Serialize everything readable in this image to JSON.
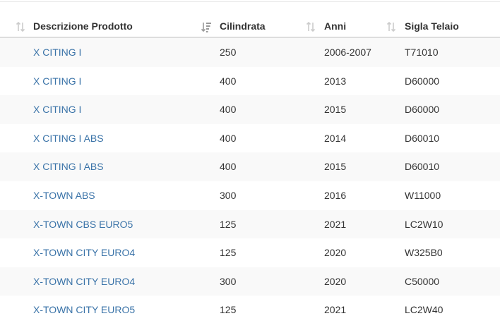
{
  "table": {
    "columns": [
      {
        "key": "product",
        "label": "Descrizione Prodotto",
        "sort_icon": "sort-both-icon"
      },
      {
        "key": "displacement",
        "label": "Cilindrata",
        "sort_icon": "sort-amount-desc-icon"
      },
      {
        "key": "years",
        "label": "Anni",
        "sort_icon": "sort-both-icon"
      },
      {
        "key": "frame",
        "label": "Sigla Telaio",
        "sort_icon": "sort-both-icon"
      }
    ],
    "rows": [
      {
        "product": "X CITING I",
        "displacement": "250",
        "years": "2006-2007",
        "frame": "T71010"
      },
      {
        "product": "X CITING I",
        "displacement": "400",
        "years": "2013",
        "frame": "D60000"
      },
      {
        "product": "X CITING I",
        "displacement": "400",
        "years": "2015",
        "frame": "D60000"
      },
      {
        "product": "X CITING I ABS",
        "displacement": "400",
        "years": "2014",
        "frame": "D60010"
      },
      {
        "product": "X CITING I ABS",
        "displacement": "400",
        "years": "2015",
        "frame": "D60010"
      },
      {
        "product": "X-TOWN ABS",
        "displacement": "300",
        "years": "2016",
        "frame": "W11000"
      },
      {
        "product": "X-TOWN CBS EURO5",
        "displacement": "125",
        "years": "2021",
        "frame": "LC2W10"
      },
      {
        "product": "X-TOWN CITY EURO4",
        "displacement": "125",
        "years": "2020",
        "frame": "W325B0"
      },
      {
        "product": "X-TOWN CITY EURO4",
        "displacement": "300",
        "years": "2020",
        "frame": "C50000"
      },
      {
        "product": "X-TOWN CITY EURO5",
        "displacement": "125",
        "years": "2021",
        "frame": "LC2W40"
      }
    ]
  },
  "colors": {
    "link": "#3a73a8",
    "stripe": "#f9f9f9",
    "header_border": "#dddddd"
  }
}
